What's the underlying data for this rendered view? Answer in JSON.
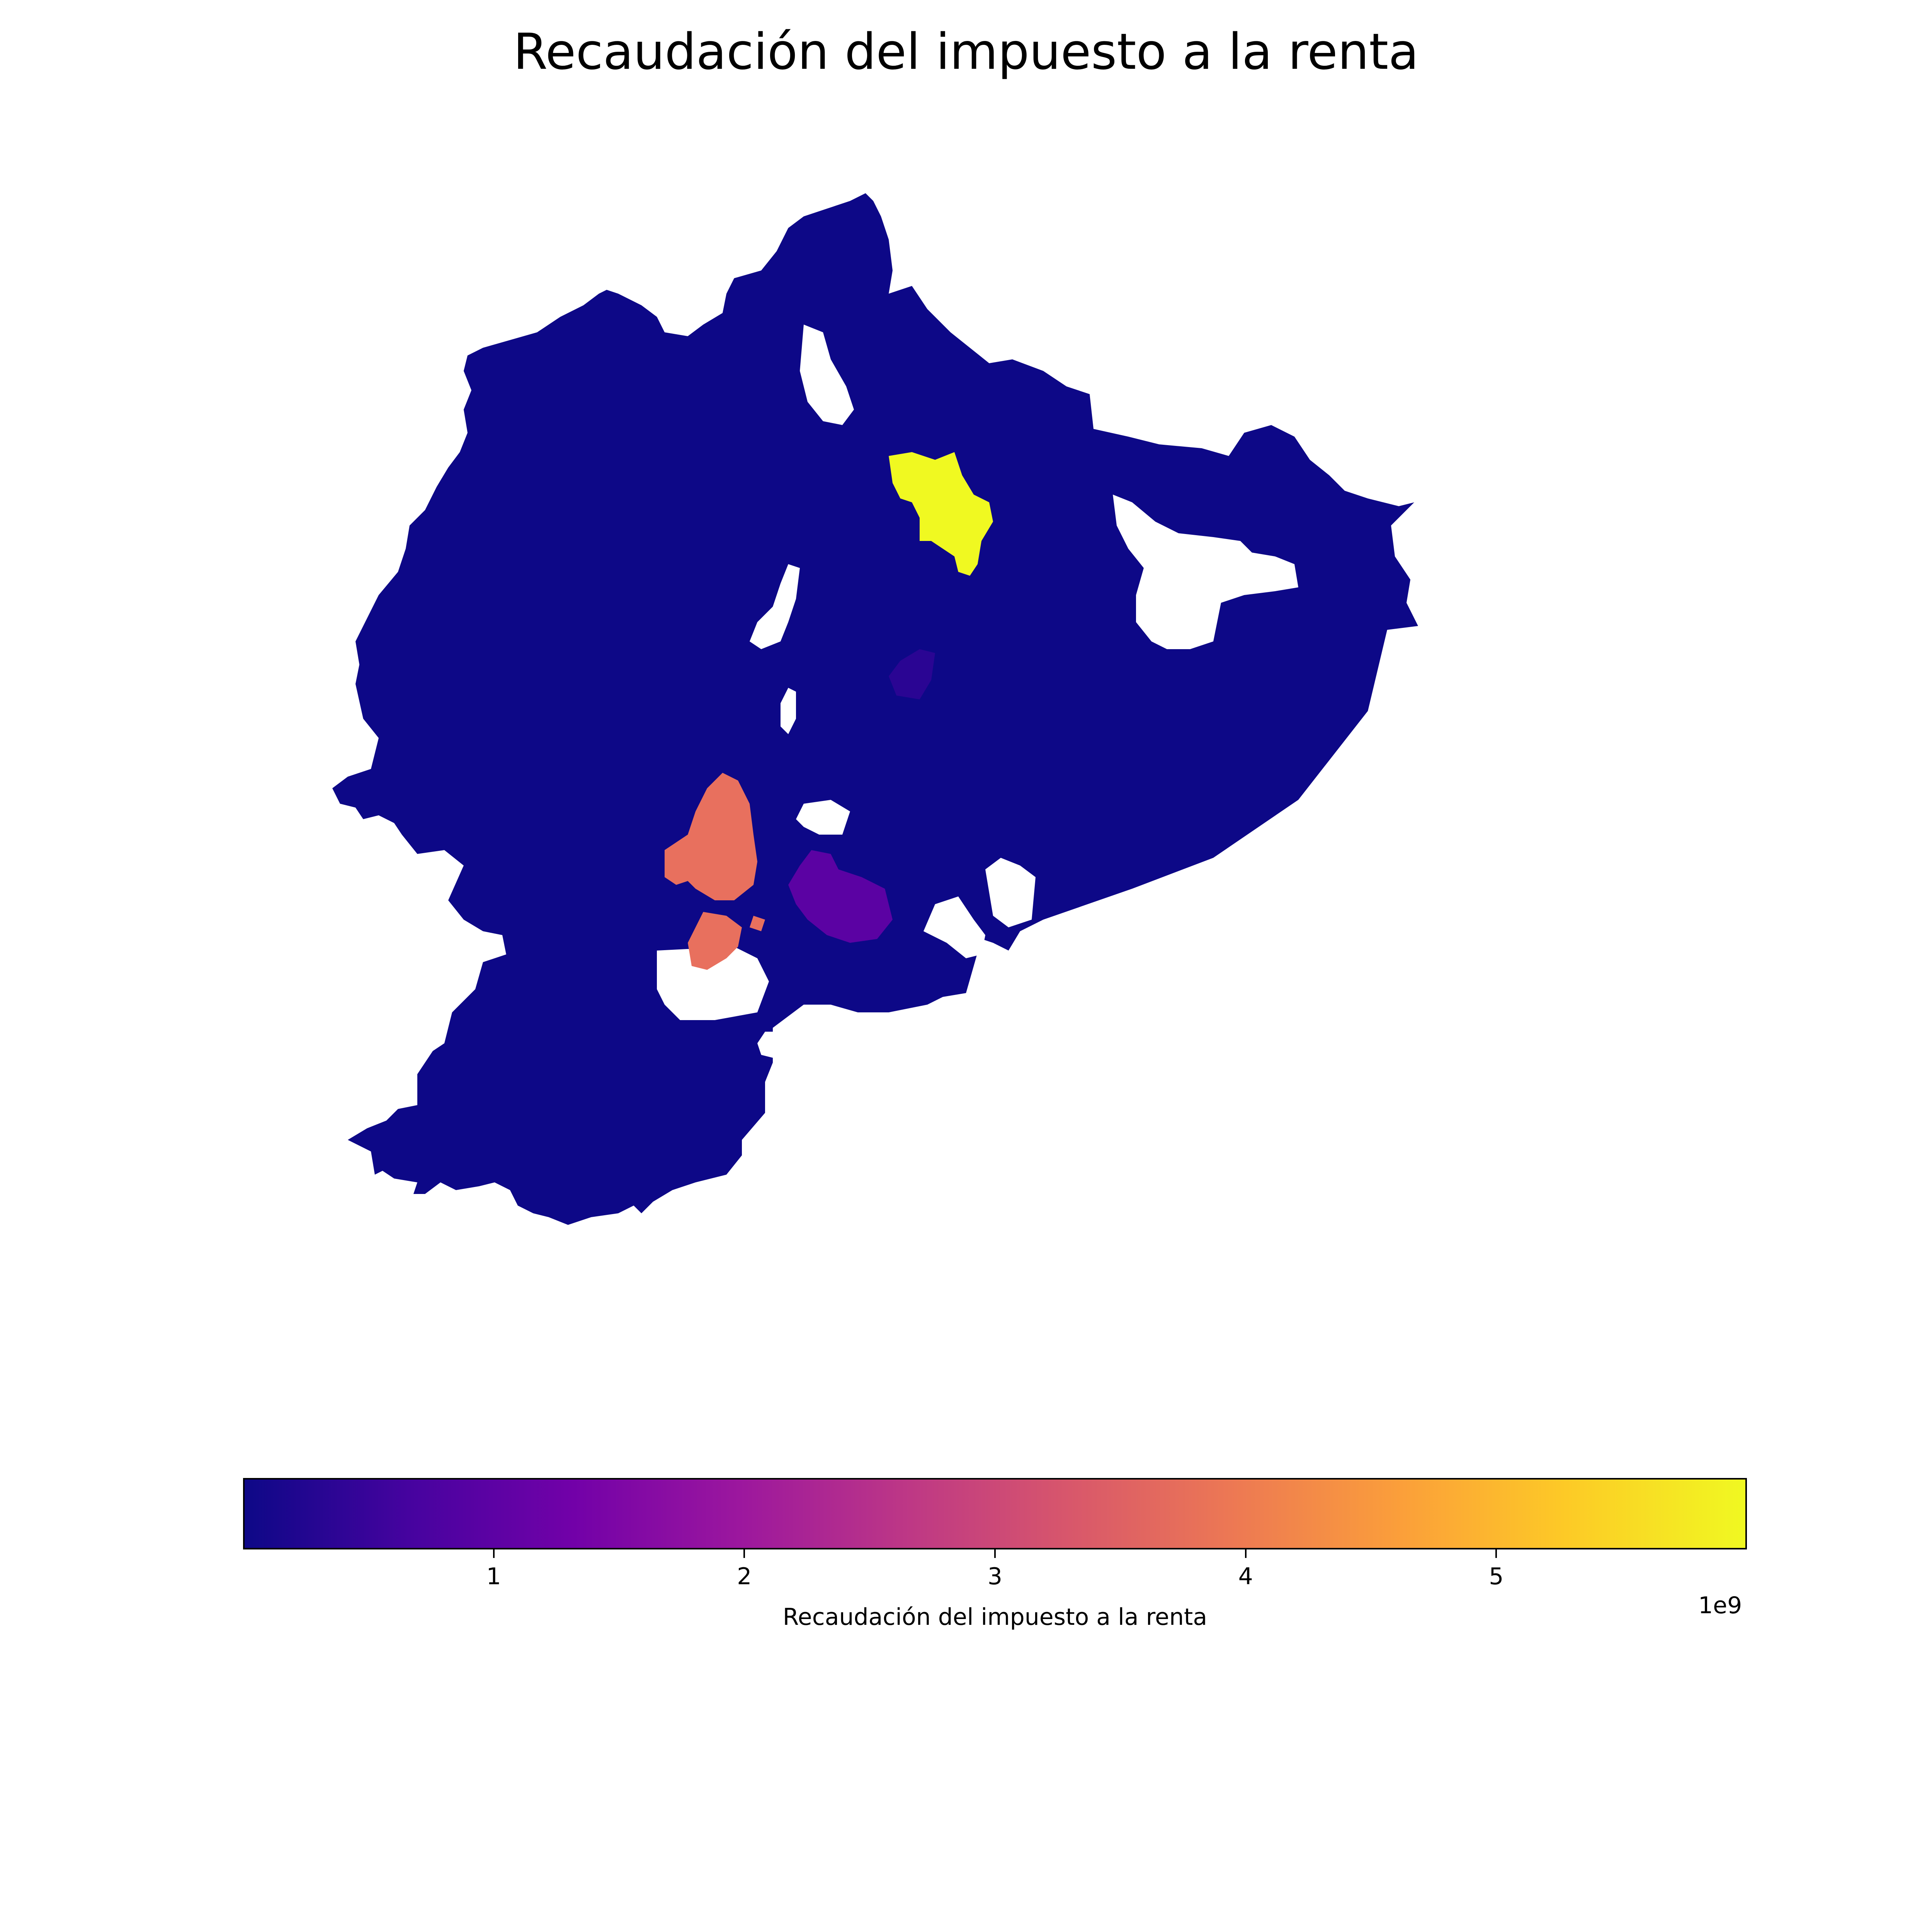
{
  "map": {
    "title": "Recaudación del impuesto a la renta",
    "colormap": "plasma",
    "colormap_stops": [
      "#0d0887",
      "#46039f",
      "#7201a8",
      "#9c179e",
      "#bd3786",
      "#d8576b",
      "#ed7953",
      "#fb9f3a",
      "#fdca26",
      "#f0f921"
    ],
    "regions": [
      {
        "id": "quito-area",
        "value": 5950000000,
        "color": "#f0f921"
      },
      {
        "id": "guayaquil-area",
        "value": 4000000000,
        "color": "#e8705e"
      },
      {
        "id": "cuenca-area",
        "value": 1100000000,
        "color": "#5b02a3"
      },
      {
        "id": "ambato-area",
        "value": 300000000,
        "color": "#2a0593"
      },
      {
        "id": "rest-of-country",
        "value": 0,
        "color": "#0d0887"
      }
    ]
  },
  "colorbar": {
    "label": "Recaudación del impuesto a la renta",
    "exponent": "1e9",
    "min": 0,
    "max": 6,
    "ticks": [
      {
        "value": 1,
        "label": "1"
      },
      {
        "value": 2,
        "label": "2"
      },
      {
        "value": 3,
        "label": "3"
      },
      {
        "value": 4,
        "label": "4"
      },
      {
        "value": 5,
        "label": "5"
      }
    ]
  }
}
